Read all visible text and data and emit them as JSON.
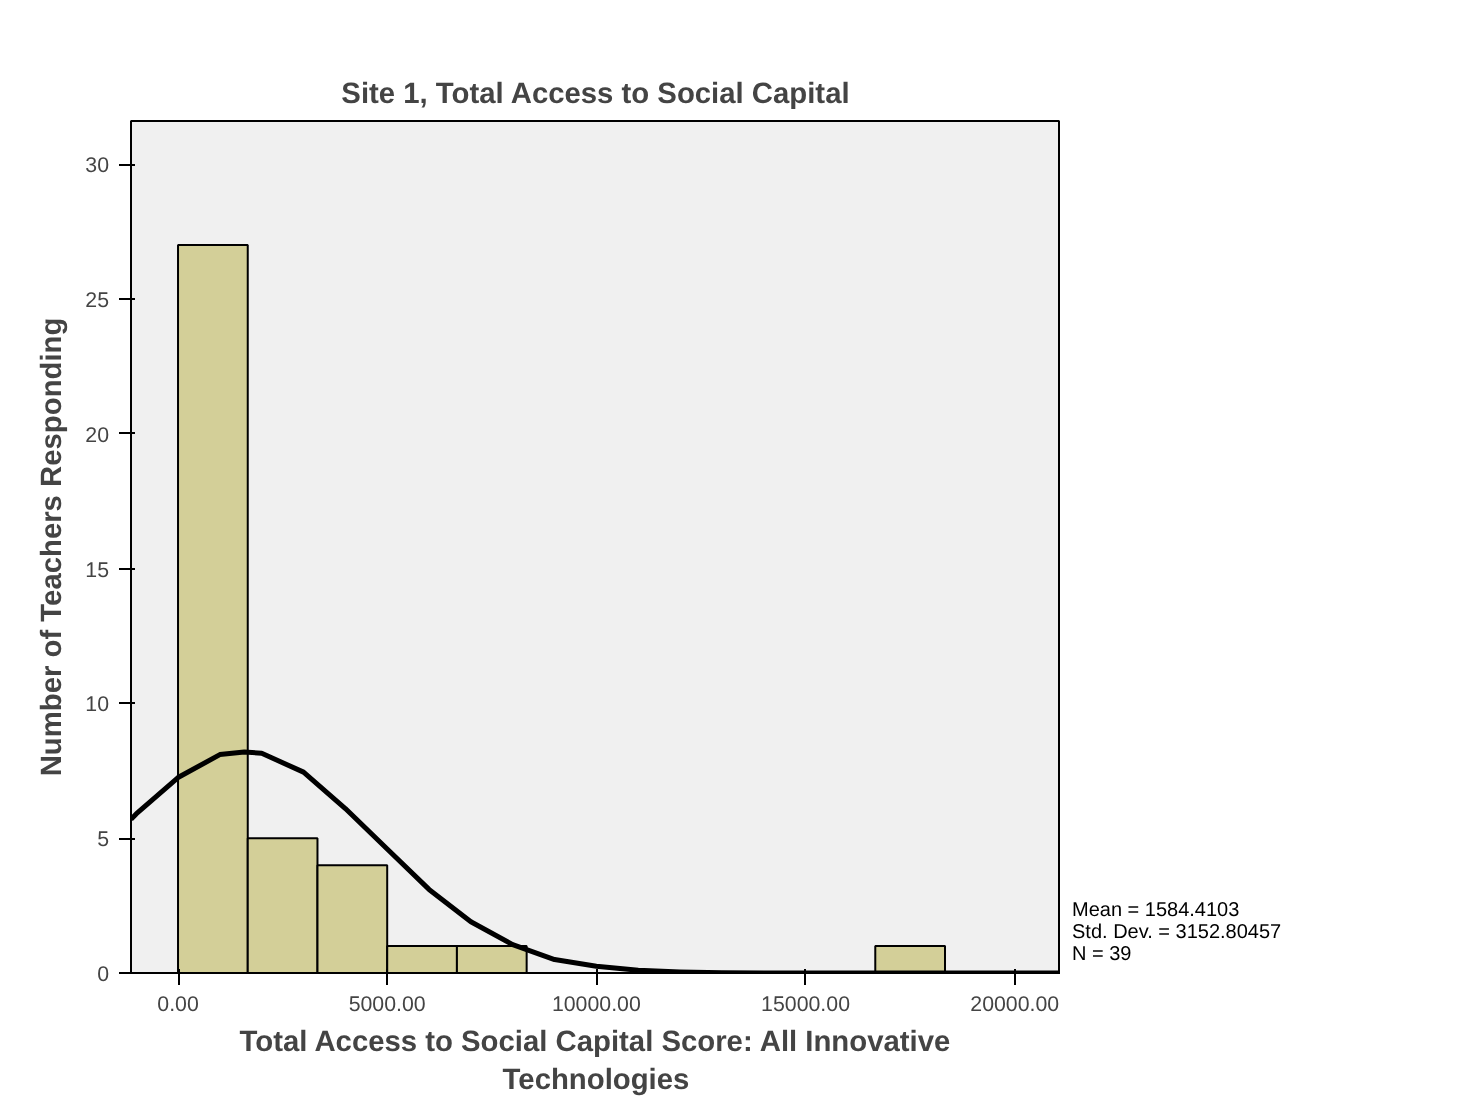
{
  "chart_data": {
    "type": "histogram",
    "title": "Site 1, Total Access to Social Capital",
    "xlabel": "Total Access to Social Capital Score: All Innovative Technologies",
    "ylabel": "Number of Teachers Responding",
    "bins": [
      0,
      1666.67,
      3333.33,
      5000,
      6666.67,
      8333.33,
      10000,
      11666.67,
      13333.33,
      15000,
      16666.67,
      18333.33
    ],
    "values": [
      27,
      5,
      4,
      1,
      1,
      0,
      0,
      0,
      0,
      0,
      1
    ],
    "color": "#d3cf98",
    "series": [
      {
        "type": "line",
        "color": "#000000",
        "x": [
          -1124,
          -1000,
          0,
          1000,
          1584,
          2000,
          3000,
          4000,
          5000,
          6000,
          7000,
          8000,
          9000,
          10000,
          11000,
          12000,
          13000,
          14000,
          16000,
          18000,
          21106
        ],
        "values": [
          5.7,
          5.9,
          7.25,
          8.1,
          8.2,
          8.15,
          7.45,
          6.1,
          4.6,
          3.1,
          1.9,
          1.05,
          0.5,
          0.25,
          0.1,
          0.04,
          0.01,
          0,
          0,
          0,
          0
        ]
      }
    ],
    "xlim": [
      -1124,
      21106
    ],
    "xticks": [
      {
        "value": 0,
        "label": "0.00"
      },
      {
        "value": 5000,
        "label": "5000.00"
      },
      {
        "value": 10000,
        "label": "10000.00"
      },
      {
        "value": 15000,
        "label": "15000.00"
      },
      {
        "value": 20000,
        "label": "20000.00"
      }
    ],
    "ylim": [
      0,
      31.6
    ],
    "yticks": [
      0,
      5,
      10,
      15,
      20,
      25,
      30
    ],
    "annotations": [
      "Mean = 1584.4103",
      "Std. Dev. = 3152.80457",
      "N = 39"
    ]
  }
}
